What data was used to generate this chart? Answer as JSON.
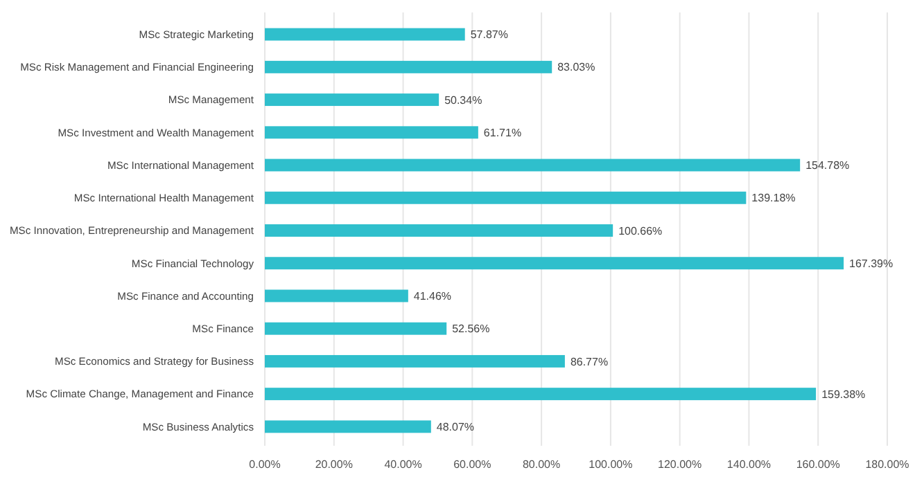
{
  "chart_data": {
    "type": "bar",
    "orientation": "horizontal",
    "categories": [
      "MSc Strategic Marketing",
      "MSc Risk Management and Financial Engineering",
      "MSc Management",
      "MSc Investment and Wealth Management",
      "MSc International Management",
      "MSc International Health Management",
      "MSc Innovation, Entrepreneurship and Management",
      "MSc Financial Technology",
      "MSc Finance and Accounting",
      "MSc Finance",
      "MSc Economics and Strategy for Business",
      "MSc Climate Change, Management and Finance",
      "MSc Business Analytics"
    ],
    "values": [
      57.87,
      83.03,
      50.34,
      61.71,
      154.78,
      139.18,
      100.66,
      167.39,
      41.46,
      52.56,
      86.77,
      159.38,
      48.07
    ],
    "value_labels": [
      "57.87%",
      "83.03%",
      "50.34%",
      "61.71%",
      "154.78%",
      "139.18%",
      "100.66%",
      "167.39%",
      "41.46%",
      "52.56%",
      "86.77%",
      "159.38%",
      "48.07%"
    ],
    "color": "#2fbfcc",
    "xlim": [
      0,
      180
    ],
    "xticks": [
      {
        "value": 0,
        "label": "0.00%"
      },
      {
        "value": 20,
        "label": "20.00%"
      },
      {
        "value": 40,
        "label": "40.00%"
      },
      {
        "value": 60,
        "label": "60.00%"
      },
      {
        "value": 80,
        "label": "80.00%"
      },
      {
        "value": 100,
        "label": "100.00%"
      },
      {
        "value": 120,
        "label": "120.00%"
      },
      {
        "value": 140,
        "label": "140.00%"
      },
      {
        "value": 160,
        "label": "160.00%"
      },
      {
        "value": 180,
        "label": "180.00%"
      }
    ],
    "grid": "x"
  }
}
